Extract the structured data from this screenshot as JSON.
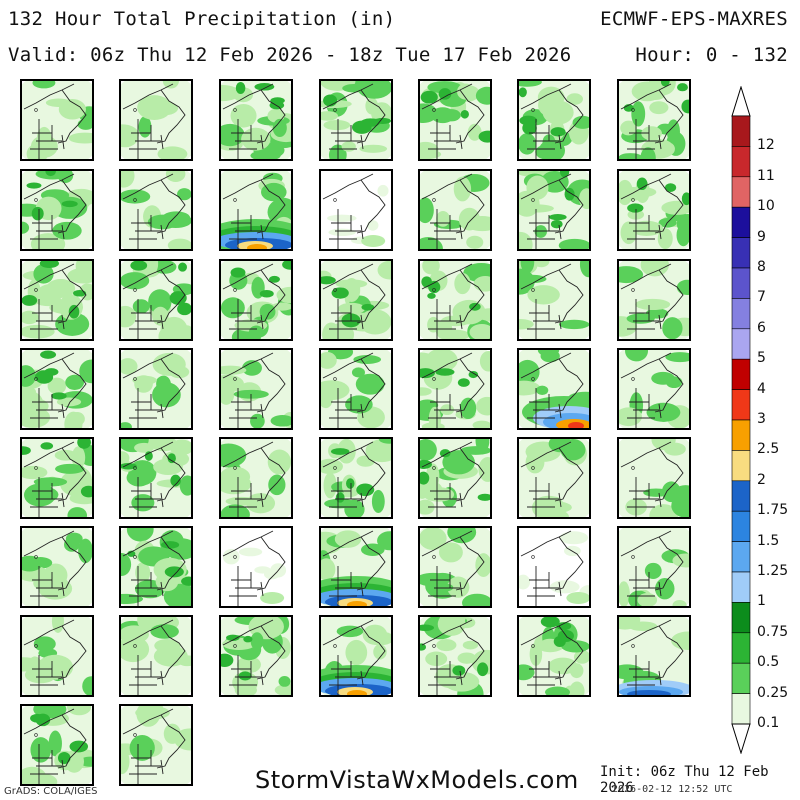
{
  "header": {
    "title": "132 Hour Total Precipitation (in)",
    "model": "ECMWF-EPS-MAXRES",
    "valid": "Valid: 06z Thu 12 Feb 2026 - 18z Tue 17 Feb 2026",
    "hours": "Hour: 0 - 132"
  },
  "footer": {
    "website": "StormVistaWxModels.com",
    "init": "Init: 06z Thu 12 Feb 2026",
    "timestamp": "2026-02-12 12:52 UTC",
    "credit": "GrADS: COLA/IGES"
  },
  "colorbar": {
    "labels": [
      "12",
      "11",
      "10",
      "9",
      "8",
      "7",
      "6",
      "5",
      "4",
      "3",
      "2.5",
      "2",
      "1.75",
      "1.5",
      "1.25",
      "1",
      "0.75",
      "0.5",
      "0.25",
      "0.1"
    ],
    "colors": [
      "#a8181c",
      "#c8282c",
      "#e06464",
      "#1c0f9c",
      "#3830b4",
      "#5c54cc",
      "#8480e0",
      "#aaa6f0",
      "#c00000",
      "#f03818",
      "#f8a000",
      "#f8dc80",
      "#1c64c8",
      "#2c84e0",
      "#5ca8f0",
      "#a0ccf8",
      "#0c8c1c",
      "#2cb434",
      "#5ad05a",
      "#e8f8e0"
    ]
  },
  "members": [
    {
      "type": "light"
    },
    {
      "type": "light"
    },
    {
      "type": "medium"
    },
    {
      "type": "medium"
    },
    {
      "type": "medium"
    },
    {
      "type": "medium"
    },
    {
      "type": "medium"
    },
    {
      "type": "medium"
    },
    {
      "type": "light"
    },
    {
      "type": "heavy-south"
    },
    {
      "type": "sparse"
    },
    {
      "type": "light"
    },
    {
      "type": "medium"
    },
    {
      "type": "medium"
    },
    {
      "type": "medium"
    },
    {
      "type": "medium"
    },
    {
      "type": "medium"
    },
    {
      "type": "medium"
    },
    {
      "type": "medium"
    },
    {
      "type": "light"
    },
    {
      "type": "light"
    },
    {
      "type": "medium"
    },
    {
      "type": "light"
    },
    {
      "type": "light"
    },
    {
      "type": "light"
    },
    {
      "type": "medium"
    },
    {
      "type": "heavy-southeast"
    },
    {
      "type": "light"
    },
    {
      "type": "medium"
    },
    {
      "type": "medium"
    },
    {
      "type": "light"
    },
    {
      "type": "medium"
    },
    {
      "type": "medium"
    },
    {
      "type": "light"
    },
    {
      "type": "light"
    },
    {
      "type": "light"
    },
    {
      "type": "medium"
    },
    {
      "type": "sparse"
    },
    {
      "type": "heavy-south"
    },
    {
      "type": "light"
    },
    {
      "type": "sparse"
    },
    {
      "type": "light"
    },
    {
      "type": "light"
    },
    {
      "type": "light"
    },
    {
      "type": "medium"
    },
    {
      "type": "heavy-south"
    },
    {
      "type": "medium"
    },
    {
      "type": "medium"
    },
    {
      "type": "blue-south"
    },
    {
      "type": "medium"
    },
    {
      "type": "light"
    }
  ]
}
